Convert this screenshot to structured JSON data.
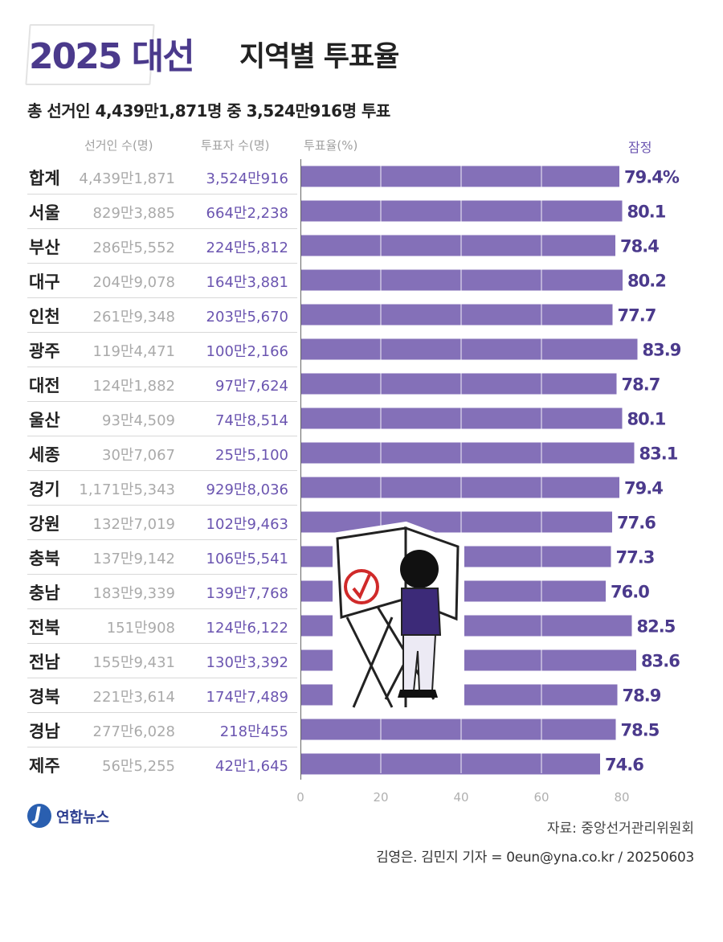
{
  "title": {
    "bold": "2025 대선",
    "rest": "지역별 투표율"
  },
  "subtitle": "총 선거인 4,439만1,871명 중 3,524만916명 투표",
  "headers": {
    "electorate": "선거인 수(명)",
    "voters": "투표자 수(명)",
    "rate": "투표율(%)",
    "preliminary": "잠정"
  },
  "chart_data": {
    "type": "bar",
    "orientation": "horizontal",
    "title": "2025 대선 지역별 투표율",
    "xlabel": "투표율(%)",
    "xlim": [
      0,
      80
    ],
    "xticks": [
      "0",
      "20",
      "40",
      "60",
      "80"
    ],
    "categories": [
      "합계",
      "서울",
      "부산",
      "대구",
      "인천",
      "광주",
      "대전",
      "울산",
      "세종",
      "경기",
      "강원",
      "충북",
      "충남",
      "전북",
      "전남",
      "경북",
      "경남",
      "제주"
    ],
    "values": [
      79.4,
      80.1,
      78.4,
      80.2,
      77.7,
      83.9,
      78.7,
      80.1,
      83.1,
      79.4,
      77.6,
      77.3,
      76.0,
      82.5,
      83.6,
      78.9,
      78.5,
      74.6
    ],
    "value_labels": [
      "79.4%",
      "80.1",
      "78.4",
      "80.2",
      "77.7",
      "83.9",
      "78.7",
      "80.1",
      "83.1",
      "79.4",
      "77.6",
      "77.3",
      "76.0",
      "82.5",
      "83.6",
      "78.9",
      "78.5",
      "74.6"
    ],
    "electorate": [
      "4,439만1,871",
      "829만3,885",
      "286만5,552",
      "204만9,078",
      "261만9,348",
      "119만4,471",
      "124만1,882",
      "93만4,509",
      "30만7,067",
      "1,171만5,343",
      "132만7,019",
      "137만9,142",
      "183만9,339",
      "151만908",
      "155만9,431",
      "221만3,614",
      "277만6,028",
      "56만5,255"
    ],
    "voters": [
      "3,524만916",
      "664만2,238",
      "224만5,812",
      "164만3,881",
      "203만5,670",
      "100만2,166",
      "97만7,624",
      "74만8,514",
      "25만5,100",
      "929만8,036",
      "102만9,463",
      "106만5,541",
      "139만7,768",
      "124만6,122",
      "130만3,392",
      "174만7,489",
      "218만455",
      "42만1,645"
    ],
    "bar_color": "#8470b8",
    "label_color": "#4b3a8c"
  },
  "footer": {
    "logo": "연합뉴스",
    "source": "자료: 중앙선거관리위원회",
    "credit": "김영은. 김민지 기자 = 0eun@yna.co.kr / 20250603"
  },
  "colors": {
    "accent": "#4b3a8c",
    "bar": "#8470b8"
  }
}
